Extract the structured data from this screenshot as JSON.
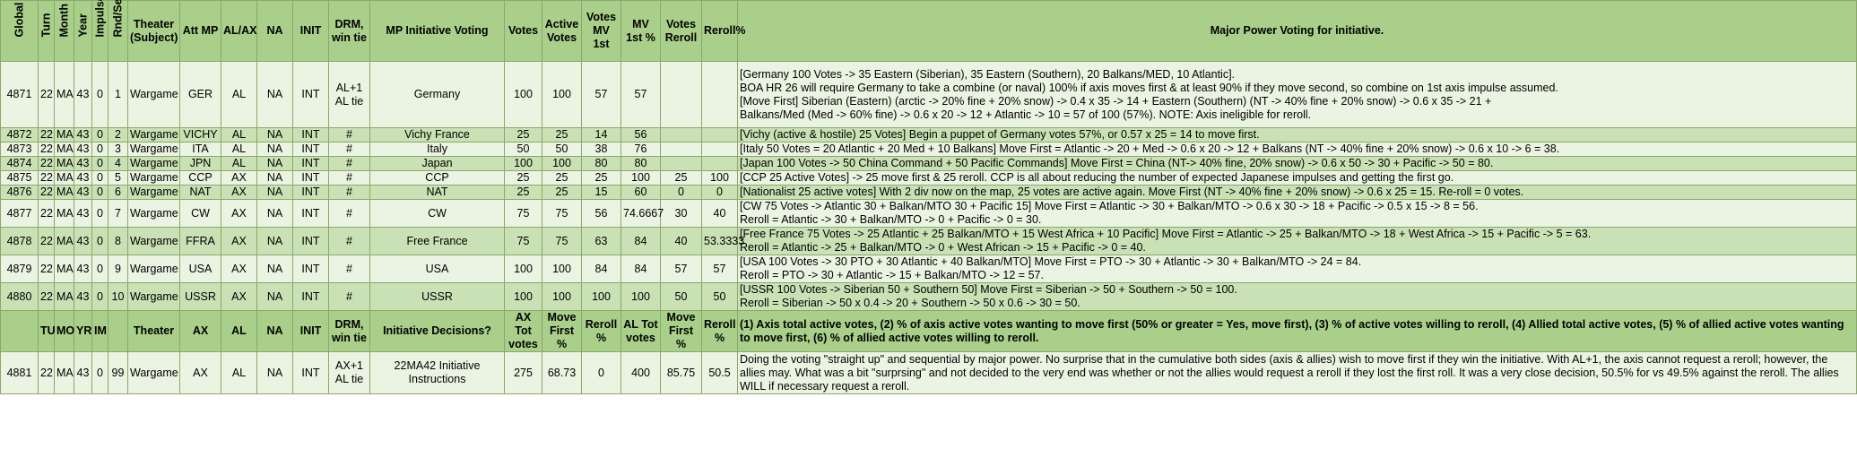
{
  "headers": {
    "global": "Global #",
    "turn": "Turn",
    "month": "Month",
    "year": "Year",
    "impulse": "Impulse",
    "rnd": "Rnd/Seq",
    "theater": "Theater (Subject)",
    "att_mp": "Att MP",
    "alax": "AL/AX",
    "na": "NA",
    "init": "INIT",
    "drm": "DRM, win tie",
    "voting": "MP Initiative Voting",
    "votes": "Votes",
    "active_votes": "Active Votes",
    "votes_mv1": "Votes MV 1st",
    "mv1_pct": "MV 1st %",
    "votes_reroll": "Votes Reroll",
    "reroll_pct": "Reroll%",
    "notes": "Major Power Voting for initiative."
  },
  "rows": [
    {
      "g": "4871",
      "t": "22",
      "m": "MA",
      "y": "43",
      "i": "0",
      "r": "1",
      "th": "Wargame",
      "mp": "GER",
      "al": "AL",
      "na": "NA",
      "init": "INT",
      "drm": "AL+1 AL tie",
      "vote": "Germany",
      "votes": "100",
      "active": "100",
      "mv1": "57",
      "mv1p": "57",
      "vr": "",
      "rp": "",
      "notes": [
        "[Germany 100 Votes -> 35 Eastern (Siberian), 35 Eastern (Southern), 20 Balkans/MED, 10 Atlantic].",
        "BOA HR 26 will require Germany to take a combine (or naval) 100% if axis moves first & at least 90% if they move second, so combine on 1st axis impulse assumed.",
        "[Move First] Siberian (Eastern) (arctic -> 20% fine + 20% snow) -> 0.4 x 35 -> 14 + Eastern (Southern) (NT -> 40% fine + 20% snow) -> 0.6 x 35 -> 21 +",
        "Balkans/Med (Med -> 60% fine) -> 0.6 x 20 -> 12 + Atlantic -> 10 = 57  of 100 (57%).  NOTE:  Axis ineligible for reroll."
      ]
    },
    {
      "g": "4872",
      "t": "22",
      "m": "MA",
      "y": "43",
      "i": "0",
      "r": "2",
      "th": "Wargame",
      "mp": "VICHY",
      "al": "AL",
      "na": "NA",
      "init": "INT",
      "drm": "#",
      "vote": "Vichy France",
      "votes": "25",
      "active": "25",
      "mv1": "14",
      "mv1p": "56",
      "vr": "",
      "rp": "",
      "notes": [
        "[Vichy (active & hostile) 25 Votes]  Begin a puppet of Germany votes 57%, or 0.57 x 25 = 14 to move first."
      ]
    },
    {
      "g": "4873",
      "t": "22",
      "m": "MA",
      "y": "43",
      "i": "0",
      "r": "3",
      "th": "Wargame",
      "mp": "ITA",
      "al": "AL",
      "na": "NA",
      "init": "INT",
      "drm": "#",
      "vote": "Italy",
      "votes": "50",
      "active": "50",
      "mv1": "38",
      "mv1p": "76",
      "vr": "",
      "rp": "",
      "notes": [
        "[Italy 50 Votes = 20 Atlantic + 20 Med + 10 Balkans]  Move First = Atlantic -> 20 + Med -> 0.6 x 20 -> 12 + Balkans (NT -> 40% fine + 20% snow) -> 0.6 x 10 -> 6 = 38."
      ]
    },
    {
      "g": "4874",
      "t": "22",
      "m": "MA",
      "y": "43",
      "i": "0",
      "r": "4",
      "th": "Wargame",
      "mp": "JPN",
      "al": "AL",
      "na": "NA",
      "init": "INT",
      "drm": "#",
      "vote": "Japan",
      "votes": "100",
      "active": "100",
      "mv1": "80",
      "mv1p": "80",
      "vr": "",
      "rp": "",
      "notes": [
        "[Japan 100 Votes -> 50 China Command + 50 Pacific Commands]  Move First = China (NT-> 40% fine, 20% snow) -> 0.6 x 50 -> 30 + Pacific -> 50 = 80."
      ]
    },
    {
      "g": "4875",
      "t": "22",
      "m": "MA",
      "y": "43",
      "i": "0",
      "r": "5",
      "th": "Wargame",
      "mp": "CCP",
      "al": "AX",
      "na": "NA",
      "init": "INT",
      "drm": "#",
      "vote": "CCP",
      "votes": "25",
      "active": "25",
      "mv1": "25",
      "mv1p": "100",
      "vr": "25",
      "rp": "100",
      "notes": [
        "[CCP 25 Active Votes] -> 25 move first & 25 reroll.  CCP is all about reducing the number of expected Japanese impulses and getting the first go."
      ]
    },
    {
      "g": "4876",
      "t": "22",
      "m": "MA",
      "y": "43",
      "i": "0",
      "r": "6",
      "th": "Wargame",
      "mp": "NAT",
      "al": "AX",
      "na": "NA",
      "init": "INT",
      "drm": "#",
      "vote": "NAT",
      "votes": "25",
      "active": "25",
      "mv1": "15",
      "mv1p": "60",
      "vr": "0",
      "rp": "0",
      "notes": [
        "[Nationalist 25 active votes]  With 2 div now on the map, 25 votes are active again.  Move First (NT -> 40% fine + 20% snow) -> 0.6 x 25 = 15.  Re-roll = 0 votes."
      ]
    },
    {
      "g": "4877",
      "t": "22",
      "m": "MA",
      "y": "43",
      "i": "0",
      "r": "7",
      "th": "Wargame",
      "mp": "CW",
      "al": "AX",
      "na": "NA",
      "init": "INT",
      "drm": "#",
      "vote": "CW",
      "votes": "75",
      "active": "75",
      "mv1": "56",
      "mv1p": "74.6667",
      "vr": "30",
      "rp": "40",
      "notes": [
        "[CW 75 Votes -> Atlantic 30 + Balkan/MTO 30 + Pacific 15]  Move First = Atlantic -> 30 + Balkan/MTO -> 0.6 x 30 -> 18 + Pacific -> 0.5 x 15 -> 8 = 56.",
        "Reroll = Atlantic -> 30 + Balkan/MTO -> 0 + Pacific -> 0 = 30."
      ]
    },
    {
      "g": "4878",
      "t": "22",
      "m": "MA",
      "y": "43",
      "i": "0",
      "r": "8",
      "th": "Wargame",
      "mp": "FFRA",
      "al": "AX",
      "na": "NA",
      "init": "INT",
      "drm": "#",
      "vote": "Free France",
      "votes": "75",
      "active": "75",
      "mv1": "63",
      "mv1p": "84",
      "vr": "40",
      "rp": "53.3333",
      "notes": [
        "[Free France 75 Votes -> 25 Atlantic + 25 Balkan/MTO + 15 West Africa + 10 Pacific]  Move First = Atlantic -> 25 + Balkan/MTO -> 18 + West Africa -> 15 + Pacific -> 5 = 63.",
        "Reroll = Atlantic -> 25 + Balkan/MTO -> 0 + West African -> 15 + Pacific -> 0 = 40."
      ]
    },
    {
      "g": "4879",
      "t": "22",
      "m": "MA",
      "y": "43",
      "i": "0",
      "r": "9",
      "th": "Wargame",
      "mp": "USA",
      "al": "AX",
      "na": "NA",
      "init": "INT",
      "drm": "#",
      "vote": "USA",
      "votes": "100",
      "active": "100",
      "mv1": "84",
      "mv1p": "84",
      "vr": "57",
      "rp": "57",
      "notes": [
        "[USA 100 Votes -> 30 PTO + 30 Atlantic + 40 Balkan/MTO]  Move First = PTO -> 30 + Atlantic -> 30 + Balkan/MTO -> 24 = 84.",
        "Reroll = PTO -> 30 + Atlantic -> 15 + Balkan/MTO -> 12 = 57."
      ]
    },
    {
      "g": "4880",
      "t": "22",
      "m": "MA",
      "y": "43",
      "i": "0",
      "r": "10",
      "th": "Wargame",
      "mp": "USSR",
      "al": "AX",
      "na": "NA",
      "init": "INT",
      "drm": "#",
      "vote": "USSR",
      "votes": "100",
      "active": "100",
      "mv1": "100",
      "mv1p": "100",
      "vr": "50",
      "rp": "50",
      "notes": [
        "[USSR 100 Votes -> Siberian 50 + Southern 50]  Move First = Siberian -> 50 + Southern -> 50 = 100.",
        "Reroll = Siberian -> 50 x 0.4 -> 20 + Southern -> 50 x 0.6 -> 30 = 50."
      ]
    }
  ],
  "summary": {
    "tu": "TU",
    "mo": "MO",
    "yr": "YR",
    "im": "IM",
    "theater": "Theater",
    "ax": "AX",
    "al": "AL",
    "na": "NA",
    "init": "INIT",
    "drm": "DRM, win tie",
    "decisions": "Initiative Decisions?",
    "ax_tot": "AX Tot votes",
    "move_first": "Move First %",
    "reroll": "Reroll %",
    "al_tot": "AL Tot votes",
    "move_first2": "Move First %",
    "reroll2": "Reroll %",
    "notes": "(1) Axis total active votes, (2) % of axis active votes wanting to move first (50% or greater = Yes, move first), (3) % of active votes willing to reroll, (4) Allied total active votes, (5) % of allied active votes wanting to move first, (6) % of allied active votes willing to reroll."
  },
  "final": {
    "g": "4881",
    "t": "22",
    "m": "MA",
    "y": "43",
    "i": "0",
    "r": "99",
    "th": "Wargame",
    "mp": "AX",
    "al": "AL",
    "na": "NA",
    "init": "INT",
    "drm": "AX+1 AL tie",
    "vote": "22MA42 Initiative Instructions",
    "votes": "275",
    "active": "68.73",
    "mv1": "0",
    "mv1p": "400",
    "vr": "85.75",
    "rp": "50.5",
    "notes": "Doing the voting \"straight up\" and sequential by major power.  No surprise that in the cumulative both sides (axis & allies) wish to move first if they win the initiative.  With AL+1, the axis cannot request a reroll; however, the allies may.  What was a bit \"surprsing\" and not decided to the very end was whether or not the allies would request a reroll if they lost the first roll.  It was a very close decision, 50.5% for vs 49.5% against the reroll.  The allies WILL if necessary request a reroll."
  }
}
